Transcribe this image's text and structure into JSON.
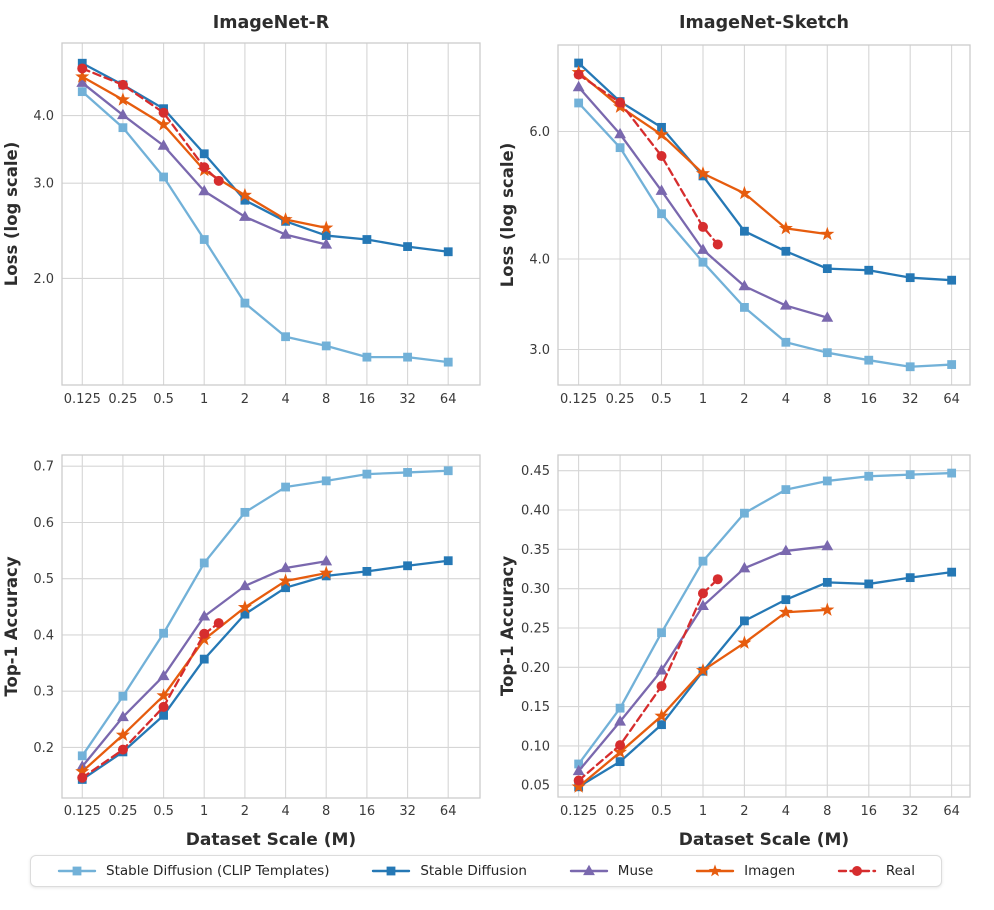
{
  "palette": {
    "sd_clip": "#72b1d8",
    "sd": "#2578b5",
    "muse": "#7a68ae",
    "imagen": "#e65c0e",
    "real": "#d62d2e",
    "grid": "#d6d6d6",
    "axis_border": "#cccccc",
    "title_text": "#2d2d2d",
    "tick_text": "#3a3a3a"
  },
  "legend": {
    "items": [
      {
        "key": "sd_clip",
        "label": "Stable Diffusion (CLIP Templates)",
        "marker": "square",
        "dash": false
      },
      {
        "key": "sd",
        "label": "Stable Diffusion",
        "marker": "square",
        "dash": false
      },
      {
        "key": "muse",
        "label": "Muse",
        "marker": "triangle",
        "dash": false
      },
      {
        "key": "imagen",
        "label": "Imagen",
        "marker": "star",
        "dash": false
      },
      {
        "key": "real",
        "label": "Real",
        "marker": "circle",
        "dash": true
      }
    ]
  },
  "chart_data": [
    {
      "type": "line",
      "title": "ImageNet-R",
      "ylabel": "Loss (log scale)",
      "xlabel": "",
      "xscale": "log2",
      "yscale": "log",
      "grid": true,
      "legend_position": "bottom-shared",
      "xlim": [
        0.0885,
        110
      ],
      "ylim": [
        1.27,
        5.45
      ],
      "xticks": [
        0.125,
        0.25,
        0.5,
        1,
        2,
        4,
        8,
        16,
        32,
        64
      ],
      "xtick_labels": [
        "0.125",
        "0.25",
        "0.5",
        "1",
        "2",
        "4",
        "8",
        "16",
        "32",
        "64"
      ],
      "yticks": [
        2,
        3,
        4
      ],
      "ytick_labels": [
        "2.0",
        "3.0",
        "4.0"
      ],
      "series": [
        {
          "name": "Stable Diffusion (CLIP Templates)",
          "key": "sd_clip",
          "marker": "square",
          "dash": false,
          "x": [
            0.125,
            0.25,
            0.5,
            1,
            2,
            4,
            8,
            16,
            32,
            64
          ],
          "y": [
            4.43,
            3.8,
            3.08,
            2.36,
            1.8,
            1.56,
            1.5,
            1.43,
            1.43,
            1.4
          ]
        },
        {
          "name": "Stable Diffusion",
          "key": "sd",
          "marker": "square",
          "dash": false,
          "x": [
            0.125,
            0.25,
            0.5,
            1,
            2,
            4,
            8,
            16,
            32,
            64
          ],
          "y": [
            5.0,
            4.56,
            4.12,
            3.4,
            2.79,
            2.55,
            2.4,
            2.36,
            2.29,
            2.24
          ]
        },
        {
          "name": "Muse",
          "key": "muse",
          "marker": "triangle",
          "dash": false,
          "x": [
            0.125,
            0.25,
            0.5,
            1,
            2,
            4,
            8
          ],
          "y": [
            4.6,
            4.01,
            3.52,
            2.9,
            2.6,
            2.41,
            2.31
          ]
        },
        {
          "name": "Imagen",
          "key": "imagen",
          "marker": "star",
          "dash": false,
          "x": [
            0.125,
            0.25,
            0.5,
            1,
            2,
            4,
            8
          ],
          "y": [
            4.72,
            4.28,
            3.85,
            3.17,
            2.85,
            2.57,
            2.48
          ]
        },
        {
          "name": "Real",
          "key": "real",
          "marker": "circle",
          "dash": true,
          "x": [
            0.125,
            0.25,
            0.5,
            1,
            1.28
          ],
          "y": [
            4.89,
            4.56,
            4.05,
            3.21,
            3.03
          ]
        }
      ]
    },
    {
      "type": "line",
      "title": "ImageNet-Sketch",
      "ylabel": "Loss (log scale)",
      "xlabel": "",
      "xscale": "log2",
      "yscale": "log",
      "grid": true,
      "legend_position": "bottom-shared",
      "xlim": [
        0.0885,
        87
      ],
      "ylim": [
        2.68,
        7.9
      ],
      "xticks": [
        0.125,
        0.25,
        0.5,
        1,
        2,
        4,
        8,
        16,
        32,
        64
      ],
      "xtick_labels": [
        "0.125",
        "0.25",
        "0.5",
        "1",
        "2",
        "4",
        "8",
        "16",
        "32",
        "64"
      ],
      "yticks": [
        3,
        4,
        6
      ],
      "ytick_labels": [
        "3.0",
        "4.0",
        "6.0"
      ],
      "series": [
        {
          "name": "Stable Diffusion (CLIP Templates)",
          "key": "sd_clip",
          "marker": "square",
          "dash": false,
          "x": [
            0.125,
            0.25,
            0.5,
            1,
            2,
            4,
            8,
            16,
            32,
            64
          ],
          "y": [
            6.57,
            5.7,
            4.62,
            3.96,
            3.43,
            3.07,
            2.97,
            2.9,
            2.84,
            2.86
          ]
        },
        {
          "name": "Stable Diffusion",
          "key": "sd",
          "marker": "square",
          "dash": false,
          "x": [
            0.125,
            0.25,
            0.5,
            1,
            2,
            4,
            8,
            16,
            32,
            64
          ],
          "y": [
            7.46,
            6.6,
            6.08,
            5.21,
            4.37,
            4.1,
            3.88,
            3.86,
            3.77,
            3.74
          ]
        },
        {
          "name": "Muse",
          "key": "muse",
          "marker": "triangle",
          "dash": false,
          "x": [
            0.125,
            0.25,
            0.5,
            1,
            2,
            4,
            8
          ],
          "y": [
            6.91,
            5.95,
            4.97,
            4.12,
            3.67,
            3.45,
            3.32
          ]
        },
        {
          "name": "Imagen",
          "key": "imagen",
          "marker": "star",
          "dash": false,
          "x": [
            0.125,
            0.25,
            0.5,
            1,
            2,
            4,
            8
          ],
          "y": [
            7.24,
            6.49,
            5.94,
            5.25,
            4.93,
            4.41,
            4.33
          ]
        },
        {
          "name": "Real",
          "key": "real",
          "marker": "circle",
          "dash": true,
          "x": [
            0.125,
            0.25,
            0.5,
            1,
            1.28
          ],
          "y": [
            7.19,
            6.58,
            5.55,
            4.43,
            4.19
          ]
        }
      ]
    },
    {
      "type": "line",
      "title": "",
      "ylabel": "Top-1 Accuracy",
      "xlabel": "Dataset Scale (M)",
      "xscale": "log2",
      "yscale": "linear",
      "grid": true,
      "legend_position": "bottom-shared",
      "xlim": [
        0.0885,
        110
      ],
      "ylim": [
        0.11,
        0.72
      ],
      "xticks": [
        0.125,
        0.25,
        0.5,
        1,
        2,
        4,
        8,
        16,
        32,
        64
      ],
      "xtick_labels": [
        "0.125",
        "0.25",
        "0.5",
        "1",
        "2",
        "4",
        "8",
        "16",
        "32",
        "64"
      ],
      "yticks": [
        0.2,
        0.3,
        0.4,
        0.5,
        0.6,
        0.7
      ],
      "ytick_labels": [
        "0.2",
        "0.3",
        "0.4",
        "0.5",
        "0.6",
        "0.7"
      ],
      "series": [
        {
          "name": "Stable Diffusion (CLIP Templates)",
          "key": "sd_clip",
          "marker": "square",
          "dash": false,
          "x": [
            0.125,
            0.25,
            0.5,
            1,
            2,
            4,
            8,
            16,
            32,
            64
          ],
          "y": [
            0.185,
            0.291,
            0.403,
            0.528,
            0.618,
            0.663,
            0.674,
            0.686,
            0.689,
            0.692
          ]
        },
        {
          "name": "Stable Diffusion",
          "key": "sd",
          "marker": "square",
          "dash": false,
          "x": [
            0.125,
            0.25,
            0.5,
            1,
            2,
            4,
            8,
            16,
            32,
            64
          ],
          "y": [
            0.143,
            0.192,
            0.257,
            0.357,
            0.437,
            0.484,
            0.505,
            0.513,
            0.523,
            0.532
          ]
        },
        {
          "name": "Muse",
          "key": "muse",
          "marker": "triangle",
          "dash": false,
          "x": [
            0.125,
            0.25,
            0.5,
            1,
            2,
            4,
            8
          ],
          "y": [
            0.166,
            0.254,
            0.327,
            0.433,
            0.487,
            0.519,
            0.531
          ]
        },
        {
          "name": "Imagen",
          "key": "imagen",
          "marker": "star",
          "dash": false,
          "x": [
            0.125,
            0.25,
            0.5,
            1,
            2,
            4,
            8
          ],
          "y": [
            0.157,
            0.222,
            0.292,
            0.392,
            0.449,
            0.496,
            0.51
          ]
        },
        {
          "name": "Real",
          "key": "real",
          "marker": "circle",
          "dash": true,
          "x": [
            0.125,
            0.25,
            0.5,
            1,
            1.28
          ],
          "y": [
            0.146,
            0.196,
            0.272,
            0.402,
            0.421
          ]
        }
      ]
    },
    {
      "type": "line",
      "title": "",
      "ylabel": "Top-1 Accuracy",
      "xlabel": "Dataset Scale (M)",
      "xscale": "log2",
      "yscale": "linear",
      "grid": true,
      "legend_position": "bottom-shared",
      "xlim": [
        0.0885,
        87
      ],
      "ylim": [
        0.035,
        0.47
      ],
      "xticks": [
        0.125,
        0.25,
        0.5,
        1,
        2,
        4,
        8,
        16,
        32,
        64
      ],
      "xtick_labels": [
        "0.125",
        "0.25",
        "0.5",
        "1",
        "2",
        "4",
        "8",
        "16",
        "32",
        "64"
      ],
      "yticks": [
        0.05,
        0.1,
        0.15,
        0.2,
        0.25,
        0.3,
        0.35,
        0.4,
        0.45
      ],
      "ytick_labels": [
        "0.05",
        "0.10",
        "0.15",
        "0.20",
        "0.25",
        "0.30",
        "0.35",
        "0.40",
        "0.45"
      ],
      "series": [
        {
          "name": "Stable Diffusion (CLIP Templates)",
          "key": "sd_clip",
          "marker": "square",
          "dash": false,
          "x": [
            0.125,
            0.25,
            0.5,
            1,
            2,
            4,
            8,
            16,
            32,
            64
          ],
          "y": [
            0.077,
            0.148,
            0.244,
            0.335,
            0.396,
            0.426,
            0.437,
            0.443,
            0.445,
            0.447
          ]
        },
        {
          "name": "Stable Diffusion",
          "key": "sd",
          "marker": "square",
          "dash": false,
          "x": [
            0.125,
            0.25,
            0.5,
            1,
            2,
            4,
            8,
            16,
            32,
            64
          ],
          "y": [
            0.048,
            0.08,
            0.127,
            0.195,
            0.259,
            0.286,
            0.308,
            0.306,
            0.314,
            0.321
          ]
        },
        {
          "name": "Muse",
          "key": "muse",
          "marker": "triangle",
          "dash": false,
          "x": [
            0.125,
            0.25,
            0.5,
            1,
            2,
            4,
            8
          ],
          "y": [
            0.068,
            0.131,
            0.196,
            0.278,
            0.326,
            0.348,
            0.354
          ]
        },
        {
          "name": "Imagen",
          "key": "imagen",
          "marker": "star",
          "dash": false,
          "x": [
            0.125,
            0.25,
            0.5,
            1,
            2,
            4,
            8
          ],
          "y": [
            0.048,
            0.092,
            0.138,
            0.196,
            0.231,
            0.27,
            0.273
          ]
        },
        {
          "name": "Real",
          "key": "real",
          "marker": "circle",
          "dash": true,
          "x": [
            0.125,
            0.25,
            0.5,
            1,
            1.28
          ],
          "y": [
            0.056,
            0.101,
            0.176,
            0.294,
            0.312
          ]
        }
      ]
    }
  ]
}
